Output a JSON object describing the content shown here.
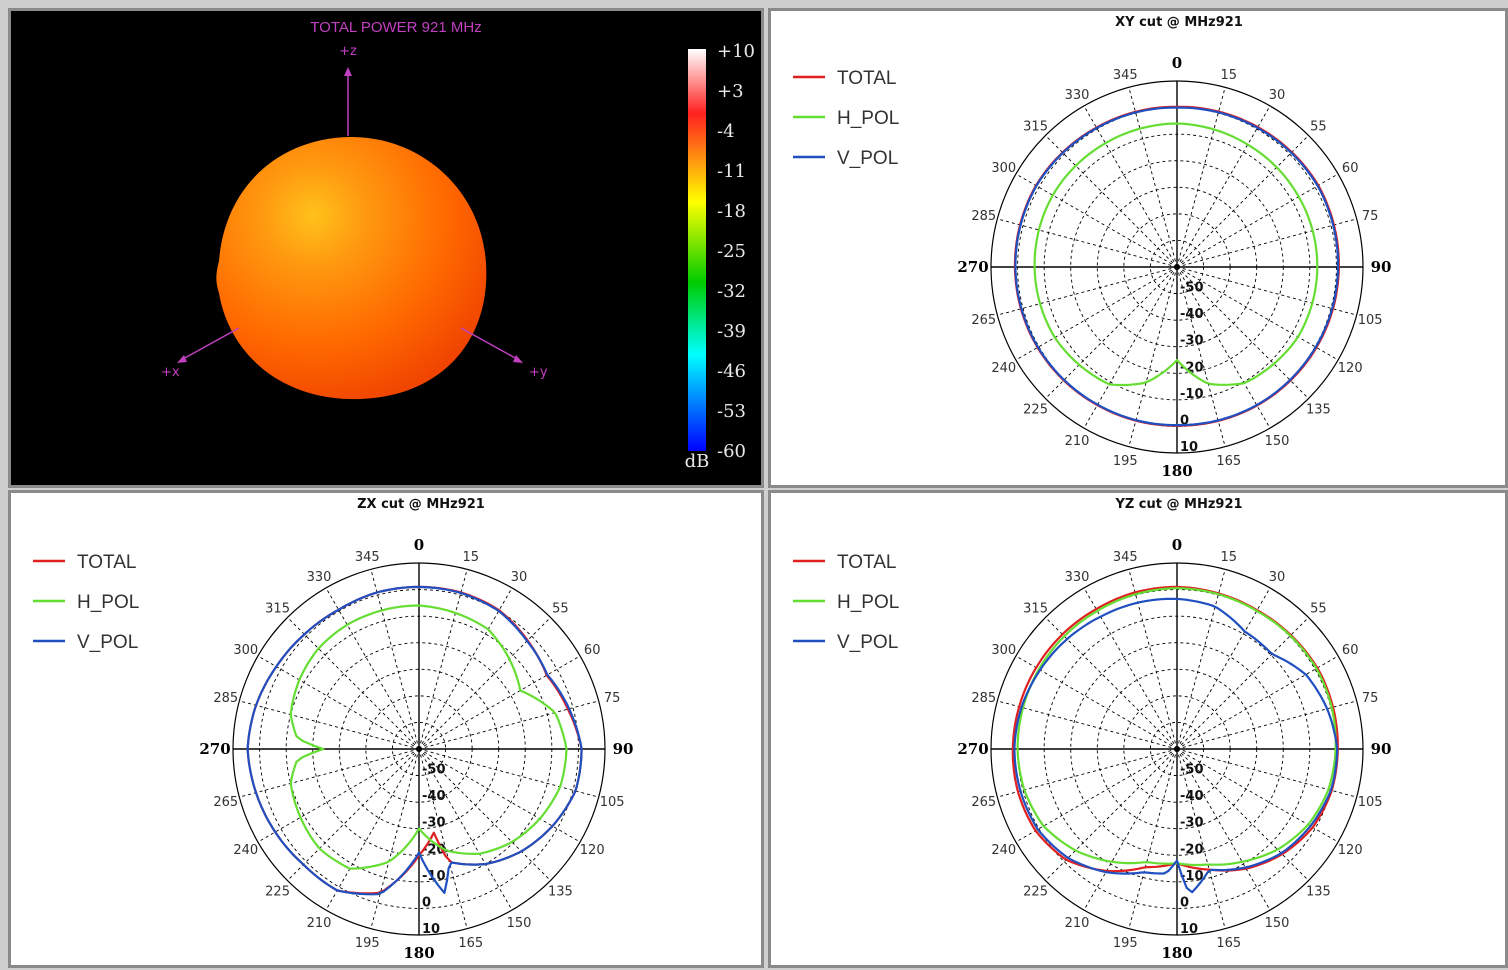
{
  "chart_data": [
    {
      "type": "3d-surface",
      "title": "TOTAL POWER 921   MHz",
      "axes": [
        "+z",
        "+x",
        "+y"
      ],
      "colorbar": {
        "unit": "dB",
        "ticks": [
          "+10",
          "+3",
          "-4",
          "-11",
          "-18",
          "-25",
          "-32",
          "-39",
          "-46",
          "-53",
          "-60"
        ],
        "colors": [
          "#ffffff",
          "#ff0000",
          "#ffff00",
          "#00cc00",
          "#00ffff",
          "#0000ff"
        ]
      },
      "surface_color": "#ff6a00"
    },
    {
      "type": "polar",
      "title": "XY cut @ MHz921",
      "angle_labels": [
        "0",
        "15",
        "30",
        "55",
        "60",
        "75",
        "90",
        "105",
        "120",
        "135",
        "150",
        "165",
        "180",
        "195",
        "210",
        "225",
        "240",
        "265",
        "270",
        "285",
        "300",
        "315",
        "330",
        "345"
      ],
      "r_labels": [
        "-50",
        "-40",
        "-30",
        "-20",
        "-10",
        "0",
        "10"
      ],
      "series": [
        {
          "name": "TOTAL",
          "color": "#e02020",
          "theta": [
            0,
            30,
            60,
            90,
            120,
            150,
            180,
            210,
            240,
            270,
            300,
            330
          ],
          "r": [
            0.3,
            0.8,
            1.4,
            0.9,
            0.6,
            0.2,
            -0.3,
            0.0,
            0.6,
            1.0,
            1.3,
            0.6
          ]
        },
        {
          "name": "H_POL",
          "color": "#66dd33",
          "theta": [
            0,
            30,
            60,
            90,
            120,
            150,
            165,
            180,
            195,
            210,
            240,
            270,
            300,
            330
          ],
          "r": [
            -6.0,
            -6.8,
            -7.1,
            -7.2,
            -7.4,
            -9.5,
            -14.5,
            -25.0,
            -15.0,
            -9.0,
            -6.9,
            -6.4,
            -6.0,
            -6.2
          ]
        },
        {
          "name": "V_POL",
          "color": "#2050c0",
          "theta": [
            0,
            30,
            60,
            90,
            120,
            150,
            180,
            210,
            240,
            270,
            300,
            330
          ],
          "r": [
            0.0,
            0.5,
            1.1,
            0.6,
            0.3,
            0.0,
            -0.5,
            -0.2,
            0.4,
            0.8,
            1.1,
            0.4
          ]
        }
      ]
    },
    {
      "type": "polar",
      "title": "ZX cut @ MHz921",
      "angle_labels": [
        "0",
        "15",
        "30",
        "55",
        "60",
        "75",
        "90",
        "105",
        "120",
        "135",
        "150",
        "165",
        "180",
        "195",
        "210",
        "225",
        "240",
        "265",
        "270",
        "285",
        "300",
        "315",
        "330",
        "345"
      ],
      "r_labels": [
        "-50",
        "-40",
        "-30",
        "-20",
        "-10",
        "0",
        "10"
      ],
      "series": [
        {
          "name": "TOTAL",
          "color": "#e02020",
          "theta": [
            0,
            15,
            30,
            45,
            60,
            75,
            90,
            105,
            120,
            135,
            150,
            165,
            170,
            180,
            195,
            210,
            225,
            240,
            255,
            270,
            285,
            300,
            315,
            330,
            345
          ],
          "r": [
            1.0,
            1.0,
            0.3,
            -2.2,
            -4.5,
            -2.0,
            1.2,
            1.0,
            -2.0,
            -5.5,
            -10.0,
            -16.0,
            -28.0,
            -20.0,
            -4.0,
            1.5,
            1.5,
            2.5,
            3.5,
            4.5,
            3.5,
            2.0,
            1.0,
            0.5,
            1.0
          ]
        },
        {
          "name": "H_POL",
          "color": "#66dd33",
          "theta": [
            0,
            15,
            30,
            45,
            60,
            75,
            90,
            105,
            120,
            135,
            150,
            165,
            180,
            195,
            210,
            225,
            240,
            255,
            265,
            270,
            275,
            285,
            300,
            315,
            330,
            345
          ],
          "r": [
            -6.0,
            -7.0,
            -8.0,
            -12.0,
            -16.0,
            -7.0,
            -4.5,
            -5.0,
            -7.5,
            -10.5,
            -14.5,
            -20.5,
            -30.0,
            -16.0,
            -8.0,
            -7.0,
            -8.5,
            -10.0,
            -14.0,
            -24.0,
            -14.0,
            -10.0,
            -8.0,
            -6.5,
            -6.0,
            -6.0
          ]
        },
        {
          "name": "V_POL",
          "color": "#2050c0",
          "theta": [
            0,
            15,
            30,
            45,
            60,
            75,
            90,
            105,
            120,
            135,
            150,
            165,
            170,
            180,
            195,
            210,
            225,
            240,
            255,
            270,
            285,
            300,
            315,
            330,
            345
          ],
          "r": [
            1.0,
            0.8,
            0.0,
            -2.5,
            -4.2,
            -1.5,
            1.2,
            1.0,
            -2.0,
            -5.5,
            -10.0,
            -16.0,
            -5.0,
            -21.0,
            -3.5,
            1.5,
            1.5,
            2.5,
            3.5,
            4.5,
            3.5,
            2.0,
            1.0,
            0.5,
            1.0
          ]
        }
      ]
    },
    {
      "type": "polar",
      "title": "YZ cut @ MHz921",
      "angle_labels": [
        "0",
        "15",
        "30",
        "55",
        "60",
        "75",
        "90",
        "105",
        "120",
        "135",
        "150",
        "165",
        "180",
        "195",
        "210",
        "225",
        "240",
        "265",
        "270",
        "285",
        "300",
        "315",
        "330",
        "345"
      ],
      "r_labels": [
        "-50",
        "-40",
        "-30",
        "-20",
        "-10",
        "0",
        "10"
      ],
      "series": [
        {
          "name": "TOTAL",
          "color": "#e02020",
          "theta": [
            0,
            15,
            30,
            45,
            60,
            75,
            90,
            105,
            120,
            135,
            150,
            165,
            180,
            195,
            210,
            225,
            240,
            255,
            270,
            285,
            300,
            315,
            330,
            345
          ],
          "r": [
            1.0,
            0.6,
            0.3,
            0.6,
            1.0,
            0.8,
            0.5,
            0.3,
            -1.0,
            -4.0,
            -8.0,
            -13.0,
            -17.0,
            -14.0,
            -7.0,
            -1.0,
            1.5,
            2.0,
            1.8,
            1.5,
            1.2,
            1.0,
            0.8,
            1.0
          ]
        },
        {
          "name": "H_POL",
          "color": "#66dd33",
          "theta": [
            0,
            15,
            30,
            45,
            60,
            75,
            90,
            105,
            120,
            135,
            150,
            165,
            180,
            195,
            210,
            225,
            240,
            255,
            270,
            285,
            300,
            315,
            330,
            345
          ],
          "r": [
            0.5,
            0.3,
            0.0,
            0.3,
            0.6,
            0.3,
            -0.3,
            -1.0,
            -3.0,
            -6.5,
            -11.0,
            -15.0,
            -17.0,
            -16.0,
            -11.0,
            -6.0,
            -2.0,
            -0.5,
            0.0,
            0.0,
            0.0,
            0.0,
            0.0,
            0.3
          ]
        },
        {
          "name": "V_POL",
          "color": "#2050c0",
          "theta": [
            0,
            15,
            30,
            45,
            60,
            75,
            90,
            105,
            120,
            135,
            150,
            165,
            175,
            180,
            185,
            195,
            210,
            225,
            240,
            255,
            270,
            285,
            300,
            315,
            330,
            345
          ],
          "r": [
            -3.5,
            -4.5,
            -9.0,
            -9.5,
            -4.0,
            -1.5,
            0.3,
            0.0,
            -2.0,
            -4.5,
            -8.5,
            -13.0,
            -5.0,
            -18.0,
            -13.0,
            -12.0,
            -6.5,
            -2.0,
            0.5,
            1.0,
            1.2,
            0.6,
            -0.5,
            -1.5,
            -2.5,
            -3.0
          ]
        }
      ]
    }
  ]
}
